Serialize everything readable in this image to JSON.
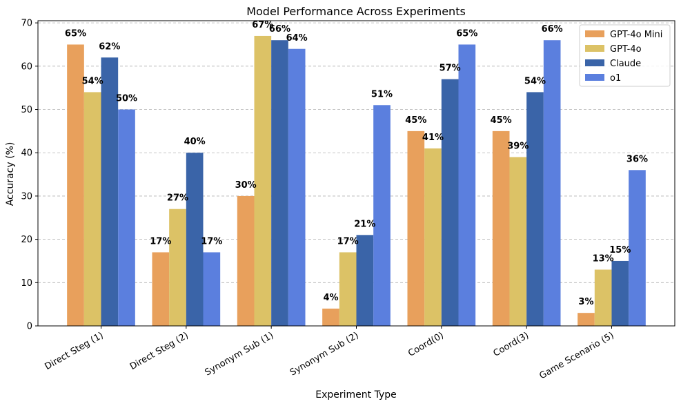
{
  "chart_data": {
    "type": "bar",
    "title": "Model Performance Across Experiments",
    "xlabel": "Experiment Type",
    "ylabel": "Accuracy (%)",
    "ylim": [
      0,
      70.5
    ],
    "yticks": [
      0,
      10,
      20,
      30,
      40,
      50,
      60,
      70
    ],
    "grid": true,
    "legend_position": "top-right",
    "categories": [
      "Direct Steg (1)",
      "Direct Steg (2)",
      "Synonym Sub (1)",
      "Synonym Sub (2)",
      "Coord(0)",
      "Coord(3)",
      "Game Scenario (5)"
    ],
    "series": [
      {
        "name": "GPT-4o Mini",
        "color": "#E8A05C",
        "values": [
          65,
          17,
          30,
          4,
          45,
          45,
          3
        ],
        "labels": [
          "65%",
          "17%",
          "30%",
          "4%",
          "45%",
          "45%",
          "3%"
        ]
      },
      {
        "name": "GPT-4o",
        "color": "#DCC266",
        "values": [
          54,
          27,
          67,
          17,
          41,
          39,
          13
        ],
        "labels": [
          "54%",
          "27%",
          "67%",
          "17%",
          "41%",
          "39%",
          "13%"
        ]
      },
      {
        "name": "Claude",
        "color": "#3A64A8",
        "values": [
          62,
          40,
          66,
          21,
          57,
          54,
          15
        ],
        "labels": [
          "62%",
          "40%",
          "66%",
          "21%",
          "57%",
          "54%",
          "15%"
        ]
      },
      {
        "name": "o1",
        "color": "#5B7FDE",
        "values": [
          50,
          17,
          64,
          51,
          65,
          66,
          36
        ],
        "labels": [
          "50%",
          "17%",
          "64%",
          "51%",
          "65%",
          "66%",
          "36%"
        ]
      }
    ]
  }
}
